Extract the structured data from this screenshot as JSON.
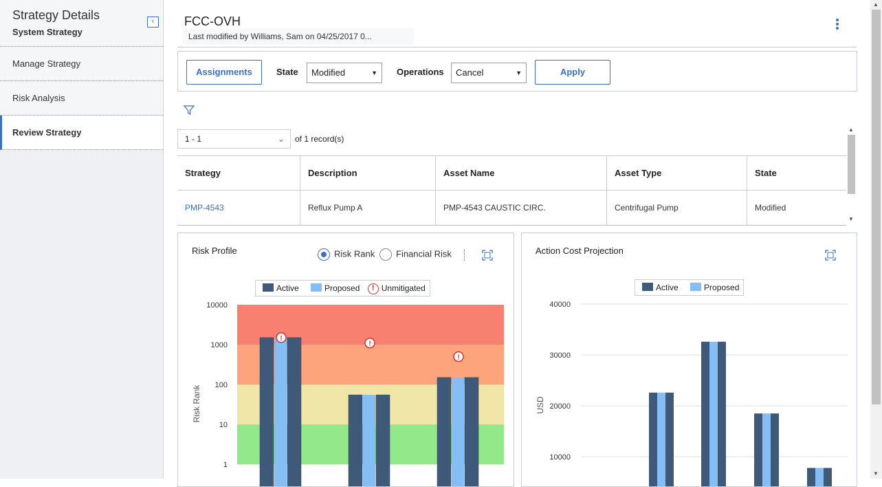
{
  "sidebar": {
    "title": "Strategy Details",
    "subtitle": "System Strategy",
    "items": [
      {
        "label": "Manage Strategy"
      },
      {
        "label": "Risk Analysis"
      },
      {
        "label": "Review Strategy"
      }
    ]
  },
  "header": {
    "title": "FCC-OVH",
    "subtitle": "Last modified by Williams, Sam on 04/25/2017 0..."
  },
  "toolbar": {
    "assignments_label": "Assignments",
    "state_label": "State",
    "state_value": "Modified",
    "operations_label": "Operations",
    "operations_value": "Cancel",
    "apply_label": "Apply"
  },
  "pager": {
    "range": "1 - 1",
    "of": "of",
    "count": "1",
    "records": "record(s)"
  },
  "grid": {
    "columns": [
      "Strategy",
      "Description",
      "Asset Name",
      "Asset Type",
      "State"
    ],
    "rows": [
      [
        "PMP-4543",
        "Reflux Pump A",
        "PMP-4543 CAUSTIC CIRC.",
        "Centrifugal Pump",
        "Modified"
      ]
    ]
  },
  "risk_panel": {
    "title": "Risk Profile",
    "radio_risk_rank": "Risk Rank",
    "radio_financial": "Financial Risk",
    "legend": [
      "Active",
      "Proposed",
      "Unmitigated"
    ]
  },
  "cost_panel": {
    "title": "Action Cost Projection",
    "legend": [
      "Active",
      "Proposed"
    ]
  },
  "colors": {
    "active": "#3f5a78",
    "proposed": "#85bdf5",
    "accent": "#3a6fc4",
    "band_red": "#f88070",
    "band_orange": "#fda47c",
    "band_yellow": "#efe6a8",
    "band_green": "#93e98a"
  },
  "chart_data": [
    {
      "type": "bar",
      "title": "",
      "ylabel": "Risk Rank",
      "yscale": "log",
      "ylim": [
        1,
        10000
      ],
      "yticks": [
        1,
        10,
        100,
        1000,
        10000
      ],
      "categories": [
        "",
        "",
        ""
      ],
      "series": [
        {
          "name": "Active",
          "values": [
            1500,
            55,
            150
          ]
        },
        {
          "name": "Proposed",
          "values": [
            1500,
            55,
            150
          ]
        }
      ],
      "unmitigated": [
        1500,
        1100,
        500
      ],
      "background_bands": [
        {
          "from": 1,
          "to": 10,
          "color": "green"
        },
        {
          "from": 10,
          "to": 100,
          "color": "yellow"
        },
        {
          "from": 100,
          "to": 1000,
          "color": "orange"
        },
        {
          "from": 1000,
          "to": 10000,
          "color": "red"
        }
      ],
      "legend_position": "top"
    },
    {
      "type": "bar",
      "title": "",
      "ylabel": "USD",
      "ylim": [
        0,
        40000
      ],
      "yticks": [
        10000,
        20000,
        30000,
        40000
      ],
      "categories": [
        "",
        "",
        "",
        ""
      ],
      "series": [
        {
          "name": "Active",
          "values": [
            22600,
            32600,
            18500,
            7800
          ]
        },
        {
          "name": "Proposed",
          "values": [
            22600,
            32600,
            18500,
            7800
          ]
        }
      ],
      "legend_position": "top",
      "grid": true
    }
  ]
}
